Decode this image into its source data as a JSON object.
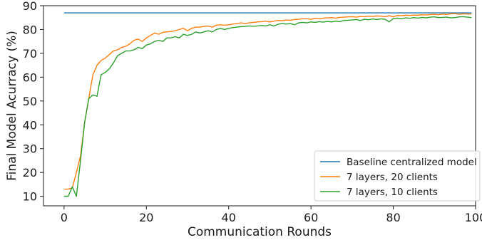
{
  "chart_data": {
    "type": "line",
    "title": "",
    "xlabel": "Communication Rounds",
    "ylabel": "Final Model Acurracy (%)",
    "xlim": [
      -5,
      100
    ],
    "ylim": [
      6,
      90
    ],
    "xticks": [
      0,
      20,
      40,
      60,
      80,
      100
    ],
    "yticks": [
      10,
      20,
      30,
      40,
      50,
      60,
      70,
      80,
      90
    ],
    "grid": false,
    "legend_position": "lower-right",
    "series": [
      {
        "name": "Baseline centralized model",
        "color": "#1f77b4",
        "x": [
          0,
          99
        ],
        "y": [
          87,
          87
        ]
      },
      {
        "name": "7 layers, 20 clients",
        "color": "#ff7f0e",
        "x": [
          0,
          1,
          2,
          3,
          4,
          5,
          6,
          7,
          8,
          9,
          10,
          11,
          12,
          13,
          14,
          15,
          16,
          17,
          18,
          19,
          20,
          21,
          22,
          23,
          24,
          25,
          26,
          27,
          28,
          29,
          30,
          31,
          32,
          33,
          34,
          35,
          36,
          37,
          38,
          39,
          40,
          41,
          42,
          43,
          44,
          45,
          46,
          47,
          48,
          49,
          50,
          51,
          52,
          53,
          54,
          55,
          56,
          57,
          58,
          59,
          60,
          61,
          62,
          63,
          64,
          65,
          66,
          67,
          68,
          69,
          70,
          71,
          72,
          73,
          74,
          75,
          76,
          77,
          78,
          79,
          80,
          81,
          82,
          83,
          84,
          85,
          86,
          87,
          88,
          89,
          90,
          91,
          92,
          93,
          94,
          95,
          96,
          97,
          98,
          99
        ],
        "y": [
          13,
          13,
          13.5,
          20,
          27,
          41,
          51,
          61,
          65,
          67,
          68,
          69.5,
          71,
          71.5,
          72.5,
          73,
          74,
          75.5,
          76,
          75,
          76.5,
          77.5,
          78.5,
          78,
          78.8,
          79,
          79.2,
          79.5,
          80,
          80.5,
          79.5,
          80.5,
          81,
          81,
          81.3,
          81.5,
          81,
          81.8,
          82,
          81.8,
          82,
          82.3,
          82.5,
          82.8,
          82.5,
          82.8,
          83,
          83.2,
          83.3,
          83.5,
          83.2,
          83.5,
          83.8,
          83.7,
          84,
          83.9,
          84.2,
          84.3,
          84.5,
          84.5,
          84.3,
          84.7,
          84.6,
          84.8,
          84.9,
          85,
          84.8,
          85.1,
          85.2,
          85.3,
          85.4,
          85.2,
          85.5,
          85.4,
          85.6,
          85.5,
          85.7,
          85.6,
          85.4,
          85.8,
          85.3,
          85.9,
          85.8,
          86,
          85.9,
          86.1,
          86,
          86.2,
          86.1,
          86.3,
          86.4,
          86.2,
          86.5,
          86.3,
          86.6,
          86.7,
          86.4,
          86.6,
          86.5,
          86.5
        ]
      },
      {
        "name": "7 layers, 10 clients",
        "color": "#2ca02c",
        "x": [
          0,
          1,
          2,
          3,
          4,
          5,
          6,
          7,
          8,
          9,
          10,
          11,
          12,
          13,
          14,
          15,
          16,
          17,
          18,
          19,
          20,
          21,
          22,
          23,
          24,
          25,
          26,
          27,
          28,
          29,
          30,
          31,
          32,
          33,
          34,
          35,
          36,
          37,
          38,
          39,
          40,
          41,
          42,
          43,
          44,
          45,
          46,
          47,
          48,
          49,
          50,
          51,
          52,
          53,
          54,
          55,
          56,
          57,
          58,
          59,
          60,
          61,
          62,
          63,
          64,
          65,
          66,
          67,
          68,
          69,
          70,
          71,
          72,
          73,
          74,
          75,
          76,
          77,
          78,
          79,
          80,
          81,
          82,
          83,
          84,
          85,
          86,
          87,
          88,
          89,
          90,
          91,
          92,
          93,
          94,
          95,
          96,
          97,
          98,
          99
        ],
        "y": [
          10,
          10,
          14,
          10,
          25,
          41,
          51,
          52.5,
          52,
          61,
          62,
          63.5,
          66,
          69,
          70,
          71,
          71,
          71.5,
          72.5,
          72,
          73.5,
          74,
          75,
          75.5,
          75,
          76.5,
          76.5,
          77,
          76.5,
          78,
          77.5,
          78,
          79,
          78.5,
          79,
          79.5,
          79,
          80,
          80.5,
          80,
          80.5,
          80.8,
          81,
          81.2,
          81.3,
          81.5,
          81.4,
          81.5,
          81.7,
          81.5,
          82,
          81.5,
          82.2,
          82.5,
          82.3,
          82.5,
          82,
          82.8,
          83,
          82.8,
          83.2,
          83,
          83.3,
          83.1,
          83.4,
          83.2,
          83.5,
          83.3,
          83.8,
          83.9,
          84,
          84.2,
          83.8,
          84.3,
          84.1,
          84.4,
          84.2,
          84.5,
          84.3,
          83.2,
          84.6,
          84.8,
          84.5,
          84.9,
          84.7,
          85,
          84.8,
          85.1,
          84.9,
          85.2,
          85.3,
          85,
          85.1,
          85.2,
          84.9,
          85,
          85.3,
          85.4,
          85.2,
          85
        ]
      }
    ]
  }
}
